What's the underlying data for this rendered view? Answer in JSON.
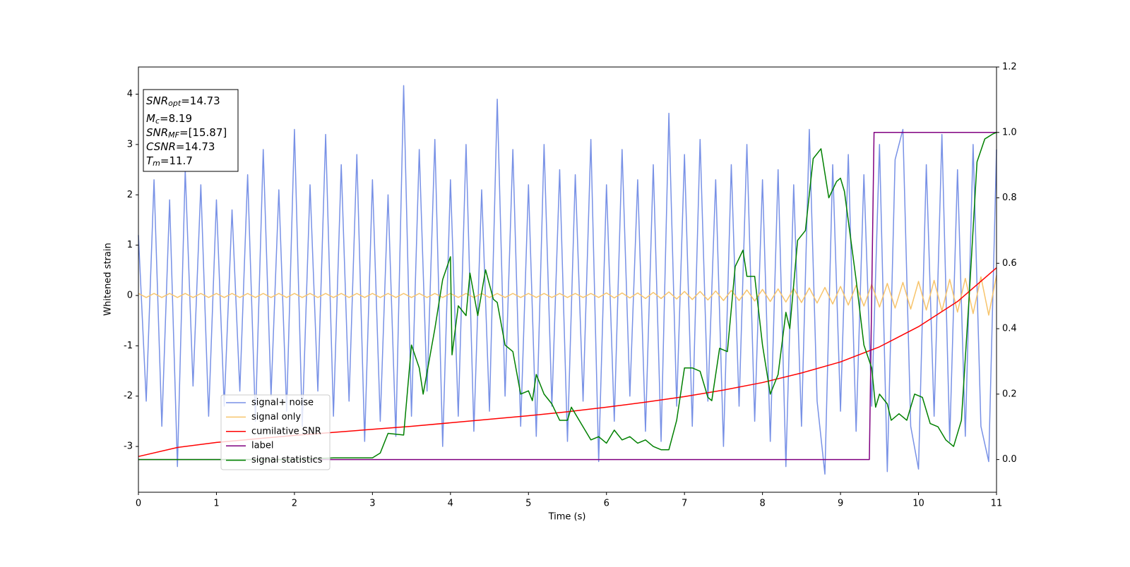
{
  "chart_data": {
    "type": "line",
    "xlabel": "Time (s)",
    "ylabel": "Whitened strain",
    "xlim": [
      0,
      11
    ],
    "xticks": [
      0,
      1,
      2,
      3,
      4,
      5,
      6,
      7,
      8,
      9,
      10,
      11
    ],
    "ylim": [
      -3.91,
      4.54
    ],
    "yticks": [
      -3,
      -2,
      -1,
      0,
      1,
      2,
      3,
      4
    ],
    "y2lim": [
      -0.1,
      1.2
    ],
    "y2ticks": [
      {
        "value": 0,
        "label": "0.0"
      },
      {
        "value": 0.2,
        "label": "0.2"
      },
      {
        "value": 0.4,
        "label": "0.4"
      },
      {
        "value": 0.6,
        "label": "0.6"
      },
      {
        "value": 0.8,
        "label": "0.8"
      },
      {
        "value": 1,
        "label": "1.0"
      },
      {
        "value": 1.2,
        "label": "1.2"
      }
    ],
    "annotation": [
      {
        "main": "SNR",
        "sub": "opt",
        "rest": "=14.73"
      },
      {
        "main": "M",
        "sub": "c",
        "rest": "=8.19"
      },
      {
        "main": "SNR",
        "sub": "MF",
        "rest": "=[15.87]"
      },
      {
        "main": "CSNR",
        "sub": null,
        "rest": "=14.73"
      },
      {
        "main": "T",
        "sub": "m",
        "rest": "=11.7"
      }
    ],
    "x": [
      0,
      0.1,
      0.2,
      0.3,
      0.4,
      0.5,
      0.6,
      0.7,
      0.8,
      0.9,
      1,
      1.1,
      1.2,
      1.3,
      1.4,
      1.5,
      1.6,
      1.7,
      1.8,
      1.9,
      2,
      2.1,
      2.2,
      2.3,
      2.4,
      2.5,
      2.6,
      2.7,
      2.8,
      2.9,
      3,
      3.1,
      3.2,
      3.3,
      3.4,
      3.5,
      3.6,
      3.7,
      3.8,
      3.9,
      4,
      4.1,
      4.2,
      4.3,
      4.4,
      4.5,
      4.6,
      4.7,
      4.8,
      4.9,
      5,
      5.1,
      5.2,
      5.3,
      5.4,
      5.5,
      5.6,
      5.7,
      5.8,
      5.9,
      6,
      6.1,
      6.2,
      6.3,
      6.4,
      6.5,
      6.6,
      6.7,
      6.8,
      6.9,
      7,
      7.1,
      7.2,
      7.3,
      7.4,
      7.5,
      7.6,
      7.7,
      7.8,
      7.9,
      8,
      8.1,
      8.2,
      8.3,
      8.4,
      8.5,
      8.6,
      8.7,
      8.8,
      8.9,
      9,
      9.1,
      9.2,
      9.3,
      9.4,
      9.5,
      9.6,
      9.7,
      9.8,
      9.9,
      10,
      10.1,
      10.2,
      10.3,
      10.4,
      10.5,
      10.6,
      10.7,
      10.8,
      10.9,
      11
    ],
    "series": [
      {
        "name": "signal+ noise",
        "color": "#7891e6",
        "values": [
          1.2,
          -2.1,
          2.3,
          -2.6,
          1.9,
          -3.4,
          2.5,
          -1.8,
          2.2,
          -2.4,
          1.9,
          -2.2,
          1.7,
          -1.9,
          2.4,
          -2.5,
          2.9,
          -2.0,
          2.1,
          -2.3,
          3.3,
          -2.6,
          2.2,
          -1.9,
          3.2,
          -2.4,
          2.6,
          -2.1,
          2.8,
          -2.9,
          2.3,
          -2.5,
          2.0,
          -2.8,
          4.17,
          -2.4,
          2.9,
          -1.9,
          3.1,
          -3.0,
          2.3,
          -2.4,
          3.0,
          -2.7,
          2.1,
          -2.3,
          3.9,
          -2.0,
          2.9,
          -2.6,
          2.2,
          -2.8,
          3.0,
          -2.2,
          2.5,
          -2.9,
          2.4,
          -2.1,
          3.1,
          -3.3,
          2.2,
          -2.5,
          2.9,
          -2.0,
          2.3,
          -2.7,
          2.6,
          -2.9,
          3.62,
          -2.2,
          2.8,
          -2.6,
          3.1,
          -2.1,
          2.3,
          -3.0,
          2.6,
          -2.2,
          3.0,
          -2.5,
          2.3,
          -2.9,
          2.5,
          -3.4,
          2.2,
          -2.6,
          3.3,
          -2.1,
          -3.55,
          2.6,
          -2.3,
          2.8,
          -2.7,
          2.4,
          -2.2,
          3.0,
          -3.5,
          2.7,
          3.3,
          -2.6,
          -3.45,
          2.6,
          -2.4,
          3.2,
          -2.9,
          2.5,
          -2.8,
          3.0,
          -2.6,
          -3.3,
          2.9
        ]
      },
      {
        "name": "signal only",
        "color": "#f7c46c",
        "values": [
          0.04,
          -0.04,
          0.04,
          -0.04,
          0.04,
          -0.04,
          0.04,
          -0.04,
          0.04,
          -0.04,
          0.04,
          -0.04,
          0.04,
          -0.04,
          0.04,
          -0.04,
          0.04,
          -0.04,
          0.04,
          -0.04,
          0.04,
          -0.04,
          0.04,
          -0.04,
          0.04,
          -0.04,
          0.04,
          -0.04,
          0.04,
          -0.04,
          0.04,
          -0.04,
          0.04,
          -0.04,
          0.04,
          -0.04,
          0.04,
          -0.04,
          0.04,
          -0.04,
          0.04,
          -0.04,
          0.04,
          -0.04,
          0.04,
          -0.04,
          0.04,
          -0.04,
          0.04,
          -0.04,
          0.04,
          -0.04,
          0.04,
          -0.04,
          0.04,
          -0.04,
          0.04,
          -0.04,
          0.04,
          -0.04,
          0.05,
          -0.05,
          0.05,
          -0.05,
          0.05,
          -0.06,
          0.06,
          -0.06,
          0.07,
          -0.07,
          0.08,
          -0.08,
          0.08,
          -0.09,
          0.09,
          -0.1,
          0.1,
          -0.1,
          0.11,
          -0.11,
          0.12,
          -0.12,
          0.13,
          -0.13,
          0.14,
          -0.14,
          0.15,
          -0.15,
          0.16,
          -0.17,
          0.18,
          -0.19,
          0.2,
          -0.21,
          0.22,
          -0.23,
          0.24,
          -0.25,
          0.26,
          -0.27,
          0.28,
          -0.29,
          0.3,
          -0.31,
          0.32,
          -0.33,
          0.34,
          -0.36,
          0.37,
          -0.39,
          0.4
        ]
      },
      {
        "name": "cumilative SNR",
        "color": "#ff0000",
        "x": [
          0,
          0.5,
          1,
          1.5,
          2,
          2.5,
          3,
          3.5,
          4,
          4.5,
          5,
          5.5,
          6,
          6.5,
          7,
          7.5,
          8,
          8.5,
          9,
          9.5,
          10,
          10.5,
          11
        ],
        "values": [
          -3.2,
          -3.02,
          -2.92,
          -2.85,
          -2.78,
          -2.72,
          -2.66,
          -2.6,
          -2.53,
          -2.46,
          -2.39,
          -2.31,
          -2.22,
          -2.12,
          -2.01,
          -1.88,
          -1.73,
          -1.54,
          -1.32,
          -1.02,
          -0.62,
          -0.12,
          0.55
        ]
      },
      {
        "name": "label",
        "color": "#800080",
        "axis": "y2",
        "x": [
          0,
          9.37,
          9.43,
          11
        ],
        "values": [
          0,
          0,
          1,
          1
        ]
      },
      {
        "name": "signal statistics",
        "color": "#008000",
        "axis": "y2",
        "x": [
          0,
          1,
          2,
          2.5,
          3,
          3.1,
          3.2,
          3.4,
          3.5,
          3.6,
          3.65,
          3.8,
          3.9,
          4.0,
          4.02,
          4.1,
          4.2,
          4.25,
          4.35,
          4.45,
          4.55,
          4.6,
          4.7,
          4.8,
          4.9,
          5.0,
          5.05,
          5.1,
          5.2,
          5.3,
          5.4,
          5.5,
          5.55,
          5.7,
          5.8,
          5.9,
          6.0,
          6.1,
          6.2,
          6.3,
          6.4,
          6.5,
          6.6,
          6.7,
          6.8,
          6.9,
          7.0,
          7.1,
          7.2,
          7.3,
          7.35,
          7.45,
          7.55,
          7.65,
          7.75,
          7.8,
          7.9,
          8.0,
          8.1,
          8.2,
          8.3,
          8.35,
          8.45,
          8.55,
          8.65,
          8.75,
          8.85,
          8.95,
          9.0,
          9.05,
          9.2,
          9.3,
          9.4,
          9.45,
          9.5,
          9.6,
          9.65,
          9.75,
          9.85,
          9.95,
          10.05,
          10.15,
          10.25,
          10.35,
          10.45,
          10.55,
          10.65,
          10.75,
          10.85,
          10.95,
          11
        ],
        "values": [
          0.0,
          0.0,
          0.0,
          0.005,
          0.005,
          0.02,
          0.08,
          0.075,
          0.35,
          0.28,
          0.2,
          0.4,
          0.55,
          0.62,
          0.32,
          0.47,
          0.44,
          0.57,
          0.44,
          0.58,
          0.49,
          0.48,
          0.35,
          0.33,
          0.2,
          0.21,
          0.18,
          0.26,
          0.2,
          0.17,
          0.12,
          0.12,
          0.16,
          0.1,
          0.06,
          0.07,
          0.05,
          0.09,
          0.06,
          0.07,
          0.05,
          0.06,
          0.04,
          0.03,
          0.03,
          0.12,
          0.28,
          0.28,
          0.27,
          0.19,
          0.18,
          0.34,
          0.33,
          0.59,
          0.64,
          0.56,
          0.56,
          0.35,
          0.2,
          0.26,
          0.45,
          0.4,
          0.67,
          0.7,
          0.92,
          0.95,
          0.8,
          0.85,
          0.86,
          0.82,
          0.55,
          0.35,
          0.28,
          0.16,
          0.2,
          0.17,
          0.12,
          0.14,
          0.12,
          0.2,
          0.19,
          0.11,
          0.1,
          0.06,
          0.04,
          0.12,
          0.5,
          0.91,
          0.98,
          0.995,
          1.0
        ]
      }
    ]
  }
}
